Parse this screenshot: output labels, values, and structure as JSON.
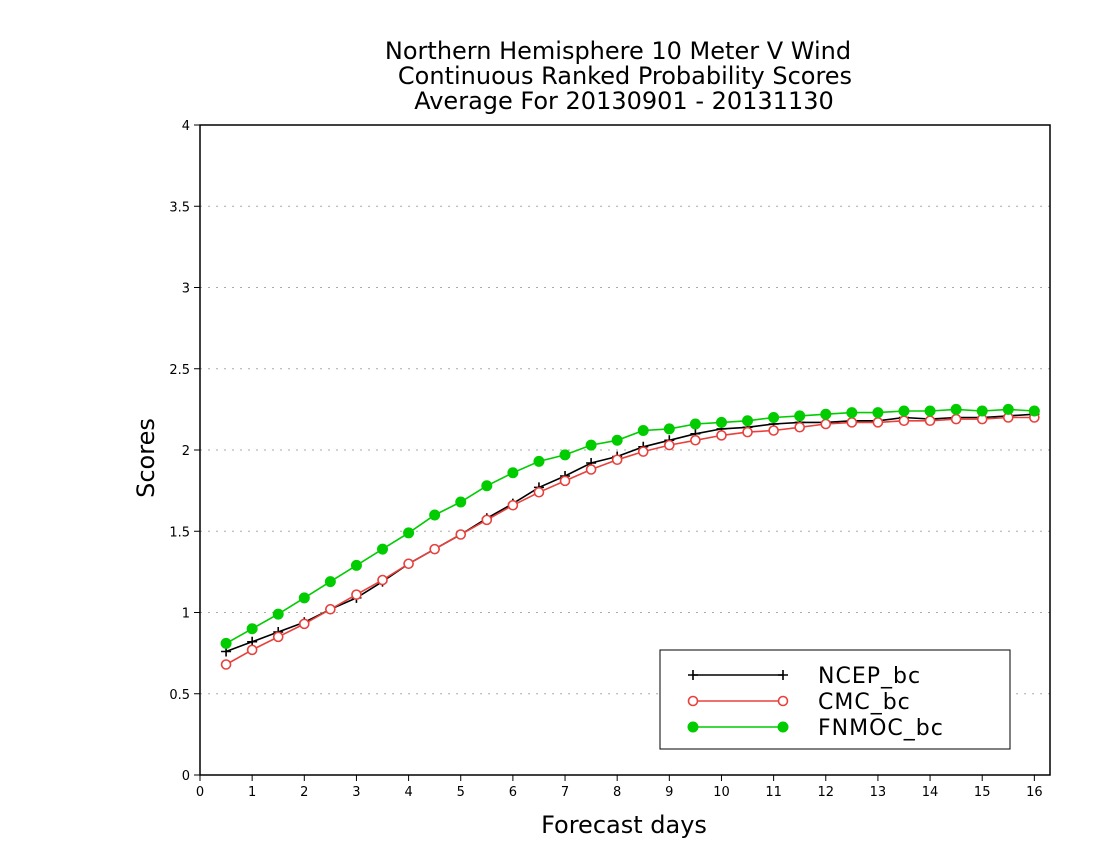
{
  "chart_data": {
    "type": "line",
    "title_lines": [
      "Northern Hemisphere 10 Meter V Wind",
      "Continuous Ranked Probability Scores",
      "Average For 20130901 - 20131130"
    ],
    "xlabel": "Forecast days",
    "ylabel": "Scores",
    "xlim": [
      0,
      16.3
    ],
    "ylim": [
      0,
      4
    ],
    "x_ticks": [
      "0",
      "1",
      "2",
      "3",
      "4",
      "5",
      "6",
      "7",
      "8",
      "9",
      "10",
      "11",
      "12",
      "13",
      "14",
      "15",
      "16"
    ],
    "y_ticks": [
      "0",
      "0.5",
      "1",
      "1.5",
      "2",
      "2.5",
      "3",
      "3.5",
      "4"
    ],
    "grid": "horizontal dotted",
    "legend_position": "bottom-right",
    "x": [
      0.5,
      1,
      1.5,
      2,
      2.5,
      3,
      3.5,
      4,
      4.5,
      5,
      5.5,
      6,
      6.5,
      7,
      7.5,
      8,
      8.5,
      9,
      9.5,
      10,
      10.5,
      11,
      11.5,
      12,
      12.5,
      13,
      13.5,
      14,
      14.5,
      15,
      15.5,
      16
    ],
    "series": [
      {
        "name": "NCEP_bc",
        "color": "#000000",
        "marker": "plus",
        "values": [
          0.76,
          0.82,
          0.88,
          0.94,
          1.02,
          1.09,
          1.19,
          1.3,
          1.39,
          1.48,
          1.58,
          1.67,
          1.77,
          1.84,
          1.92,
          1.96,
          2.02,
          2.06,
          2.1,
          2.13,
          2.14,
          2.16,
          2.17,
          2.17,
          2.18,
          2.18,
          2.2,
          2.19,
          2.2,
          2.2,
          2.21,
          2.22
        ]
      },
      {
        "name": "CMC_bc",
        "color": "#e8413c",
        "marker": "open-circle",
        "values": [
          0.68,
          0.77,
          0.85,
          0.93,
          1.02,
          1.11,
          1.2,
          1.3,
          1.39,
          1.48,
          1.57,
          1.66,
          1.74,
          1.81,
          1.88,
          1.94,
          1.99,
          2.03,
          2.06,
          2.09,
          2.11,
          2.12,
          2.14,
          2.16,
          2.17,
          2.17,
          2.18,
          2.18,
          2.19,
          2.19,
          2.2,
          2.2
        ]
      },
      {
        "name": "FNMOC_bc",
        "color": "#00cc00",
        "marker": "filled-circle",
        "values": [
          0.81,
          0.9,
          0.99,
          1.09,
          1.19,
          1.29,
          1.39,
          1.49,
          1.6,
          1.68,
          1.78,
          1.86,
          1.93,
          1.97,
          2.03,
          2.06,
          2.12,
          2.13,
          2.16,
          2.17,
          2.18,
          2.2,
          2.21,
          2.22,
          2.23,
          2.23,
          2.24,
          2.24,
          2.25,
          2.24,
          2.25,
          2.24
        ]
      }
    ]
  }
}
